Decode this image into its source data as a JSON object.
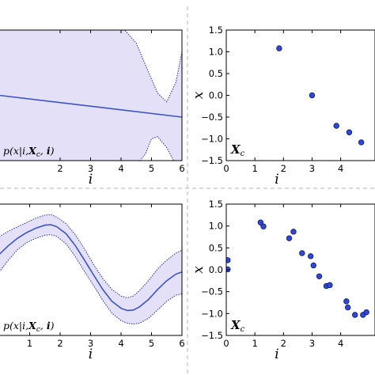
{
  "chart_data": [
    {
      "id": "top-left",
      "type": "line",
      "xlabel": "i",
      "xlim": [
        0,
        6
      ],
      "ylim": [
        -1.5,
        1.5
      ],
      "xticks": [
        "2",
        "3",
        "4",
        "5",
        "6"
      ],
      "xtick_values": [
        2,
        3,
        4,
        5,
        6
      ],
      "annotation": "p(x|i, X_c, i)",
      "annotation_text": "p(x|i,",
      "annotation_bold1": "X",
      "annotation_sub": "c",
      "annotation_mid": ", ",
      "annotation_bold2": "i",
      "annotation_end": ")",
      "mean": {
        "x": [
          0,
          6
        ],
        "y": [
          0.0,
          -0.5
        ]
      },
      "band_upper": {
        "x": [
          0,
          3.5,
          4.0,
          4.5,
          4.8,
          5.2,
          5.5,
          5.8,
          6.0
        ],
        "y": [
          1.6,
          1.6,
          1.6,
          1.2,
          0.7,
          0.05,
          -0.15,
          0.3,
          1.0
        ]
      },
      "band_lower": {
        "x": [
          0,
          3.5,
          4.0,
          4.5,
          4.8,
          5.0,
          5.2,
          5.5,
          5.8,
          6.0
        ],
        "y": [
          -1.6,
          -1.6,
          -1.6,
          -1.6,
          -1.35,
          -1.0,
          -0.95,
          -1.2,
          -1.6,
          -1.6
        ]
      },
      "colors": {
        "line": "#3a53c4",
        "band": "#e4e0f8",
        "border": "#1c2fa0"
      }
    },
    {
      "id": "top-right",
      "type": "scatter",
      "xlabel": "i",
      "ylabel": "x",
      "xlim": [
        0,
        5.2
      ],
      "ylim": [
        -1.5,
        1.5
      ],
      "xticks": [
        "0",
        "1",
        "2",
        "3",
        "4"
      ],
      "xtick_values": [
        0,
        1,
        2,
        3,
        4
      ],
      "yticks": [
        "1.5",
        "1.0",
        "0.5",
        "0.0",
        "−0.5",
        "−1.0",
        "−1.5"
      ],
      "ytick_values": [
        1.5,
        1.0,
        0.5,
        0.0,
        -0.5,
        -1.0,
        -1.5
      ],
      "annotation_bold": "X",
      "annotation_sub": "c",
      "points": [
        {
          "x": 1.85,
          "y": 1.08
        },
        {
          "x": 3.0,
          "y": 0.0
        },
        {
          "x": 3.85,
          "y": -0.7
        },
        {
          "x": 4.3,
          "y": -0.85
        },
        {
          "x": 4.72,
          "y": -1.08
        }
      ],
      "colors": {
        "point": "#2f48d6",
        "edge": "#0c1a70"
      }
    },
    {
      "id": "bottom-left",
      "type": "line",
      "xlabel": "i",
      "xlim": [
        0,
        6
      ],
      "ylim": [
        -1.5,
        1.5
      ],
      "xticks": [
        "1",
        "2",
        "3",
        "4",
        "5",
        "6"
      ],
      "xtick_values": [
        1,
        2,
        3,
        4,
        5,
        6
      ],
      "annotation_text": "p(x|i,",
      "annotation_bold1": "X",
      "annotation_sub": "c",
      "annotation_mid": ", ",
      "annotation_bold2": "i",
      "annotation_end": ")",
      "mean": {
        "x": [
          0,
          0.3,
          0.6,
          0.9,
          1.2,
          1.5,
          1.7,
          1.9,
          2.2,
          2.5,
          2.8,
          3.1,
          3.4,
          3.7,
          4.0,
          4.2,
          4.4,
          4.6,
          4.9,
          5.2,
          5.5,
          5.8,
          6.0
        ],
        "y": [
          0.35,
          0.55,
          0.72,
          0.85,
          0.95,
          1.02,
          1.03,
          0.98,
          0.82,
          0.55,
          0.22,
          -0.12,
          -0.45,
          -0.72,
          -0.88,
          -0.93,
          -0.92,
          -0.85,
          -0.68,
          -0.45,
          -0.25,
          -0.1,
          -0.05
        ]
      },
      "band_upper": {
        "x": [
          0,
          0.3,
          0.6,
          0.9,
          1.2,
          1.5,
          1.7,
          1.9,
          2.2,
          2.5,
          2.8,
          3.1,
          3.4,
          3.7,
          4.0,
          4.2,
          4.4,
          4.6,
          4.9,
          5.2,
          5.5,
          5.8,
          6.0
        ],
        "y": [
          0.75,
          0.88,
          0.98,
          1.08,
          1.18,
          1.25,
          1.26,
          1.2,
          1.05,
          0.8,
          0.48,
          0.12,
          -0.2,
          -0.45,
          -0.6,
          -0.64,
          -0.6,
          -0.48,
          -0.25,
          0.02,
          0.22,
          0.38,
          0.45
        ]
      },
      "band_lower": {
        "x": [
          0,
          0.3,
          0.6,
          0.9,
          1.2,
          1.5,
          1.7,
          1.9,
          2.2,
          2.5,
          2.8,
          3.1,
          3.4,
          3.7,
          4.0,
          4.2,
          4.4,
          4.6,
          4.9,
          5.2,
          5.5,
          5.8,
          6.0
        ],
        "y": [
          -0.05,
          0.22,
          0.46,
          0.62,
          0.72,
          0.79,
          0.8,
          0.76,
          0.59,
          0.3,
          -0.04,
          -0.36,
          -0.7,
          -0.99,
          -1.16,
          -1.22,
          -1.24,
          -1.22,
          -1.11,
          -0.92,
          -0.72,
          -0.58,
          -0.55
        ]
      },
      "colors": {
        "line": "#3a53c4",
        "band": "#e4e0f8",
        "border": "#1c2fa0"
      }
    },
    {
      "id": "bottom-right",
      "type": "scatter",
      "xlabel": "i",
      "ylabel": "x",
      "xlim": [
        0,
        5.2
      ],
      "ylim": [
        -1.5,
        1.5
      ],
      "xticks": [
        "0",
        "1",
        "2",
        "3",
        "4"
      ],
      "xtick_values": [
        0,
        1,
        2,
        3,
        4
      ],
      "yticks": [
        "1.5",
        "1.0",
        "0.5",
        "0.0",
        "−0.5",
        "−1.0",
        "−1.5"
      ],
      "ytick_values": [
        1.5,
        1.0,
        0.5,
        0.0,
        -0.5,
        -1.0,
        -1.5
      ],
      "annotation_bold": "X",
      "annotation_sub": "c",
      "points": [
        {
          "x": 0.05,
          "y": 0.22
        },
        {
          "x": 0.05,
          "y": 0.01
        },
        {
          "x": 1.2,
          "y": 1.08
        },
        {
          "x": 1.3,
          "y": 0.99
        },
        {
          "x": 2.2,
          "y": 0.72
        },
        {
          "x": 2.35,
          "y": 0.87
        },
        {
          "x": 2.65,
          "y": 0.38
        },
        {
          "x": 2.95,
          "y": 0.31
        },
        {
          "x": 3.05,
          "y": 0.1
        },
        {
          "x": 3.25,
          "y": -0.15
        },
        {
          "x": 3.5,
          "y": -0.37
        },
        {
          "x": 3.62,
          "y": -0.35
        },
        {
          "x": 4.2,
          "y": -0.72
        },
        {
          "x": 4.25,
          "y": -0.86
        },
        {
          "x": 4.5,
          "y": -1.03
        },
        {
          "x": 4.78,
          "y": -1.03
        },
        {
          "x": 4.9,
          "y": -0.97
        }
      ],
      "colors": {
        "point": "#2f48d6",
        "edge": "#0c1a70"
      }
    }
  ]
}
